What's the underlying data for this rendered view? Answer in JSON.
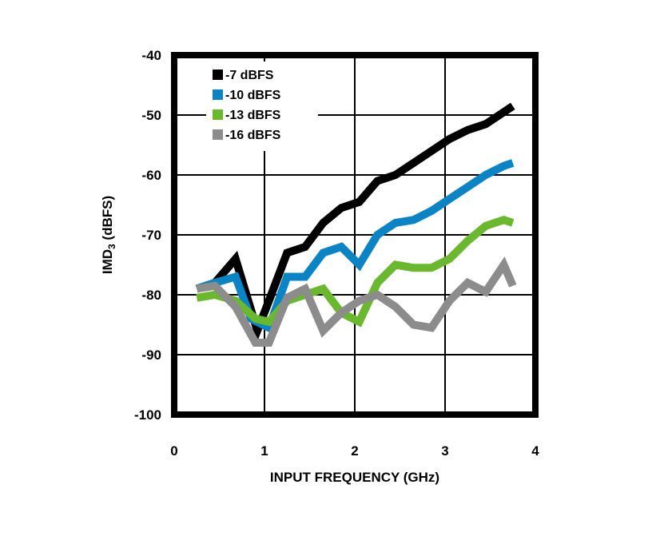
{
  "chart_data": {
    "type": "line",
    "title": "",
    "xlabel": "INPUT FREQUENCY (GHz)",
    "ylabel_main": "IMD",
    "ylabel_sub": "3",
    "ylabel_unit": " (dBFS)",
    "xlim": [
      0,
      4
    ],
    "ylim": [
      -100,
      -40
    ],
    "x_ticks": [
      "0",
      "1",
      "2",
      "3",
      "4"
    ],
    "y_ticks": [
      "-40",
      "-50",
      "-60",
      "-70",
      "-80",
      "-90",
      "-100"
    ],
    "grid": true,
    "legend_position": "top-left",
    "series": [
      {
        "name": "-7 dBFS",
        "color": "#000000",
        "x": [
          0.25,
          0.45,
          0.68,
          0.8,
          0.92,
          1.05,
          1.25,
          1.45,
          1.65,
          1.85,
          2.05,
          2.25,
          2.45,
          2.65,
          2.85,
          3.05,
          3.25,
          3.45,
          3.65,
          3.75
        ],
        "y": [
          -79,
          -78,
          -74,
          -80,
          -86,
          -81,
          -73,
          -72,
          -68,
          -65.5,
          -64.5,
          -61,
          -60,
          -58,
          -56,
          -54,
          -52.5,
          -51.5,
          -49.5,
          -48.5
        ]
      },
      {
        "name": "-10 dBFS",
        "color": "#0b84c6",
        "x": [
          0.25,
          0.45,
          0.68,
          0.85,
          1.05,
          1.25,
          1.45,
          1.65,
          1.85,
          2.05,
          2.25,
          2.45,
          2.65,
          2.85,
          3.05,
          3.25,
          3.45,
          3.65,
          3.75
        ],
        "y": [
          -79,
          -78,
          -77,
          -84,
          -85.5,
          -77,
          -77,
          -73,
          -72,
          -75,
          -70,
          -68,
          -67.5,
          -66,
          -64,
          -62,
          -60,
          -58.5,
          -58
        ]
      },
      {
        "name": "-13 dBFS",
        "color": "#6ab82e",
        "x": [
          0.25,
          0.45,
          0.68,
          0.9,
          1.05,
          1.25,
          1.45,
          1.65,
          1.85,
          2.05,
          2.25,
          2.45,
          2.65,
          2.85,
          3.05,
          3.25,
          3.45,
          3.65,
          3.75
        ],
        "y": [
          -80.5,
          -80,
          -81,
          -84,
          -84.5,
          -81,
          -80,
          -79,
          -83,
          -84.5,
          -78,
          -75,
          -75.5,
          -75.5,
          -74,
          -71,
          -68.5,
          -67.5,
          -68
        ]
      },
      {
        "name": "-16 dBFS",
        "color": "#8c8c8c",
        "x": [
          0.25,
          0.45,
          0.68,
          0.9,
          1.05,
          1.25,
          1.45,
          1.65,
          1.85,
          2.05,
          2.25,
          2.45,
          2.65,
          2.85,
          3.05,
          3.25,
          3.45,
          3.65,
          3.75
        ],
        "y": [
          -79,
          -78.5,
          -82,
          -88,
          -88,
          -80.5,
          -79,
          -86,
          -83,
          -81,
          -80,
          -82,
          -85,
          -85.5,
          -81,
          -78,
          -79.5,
          -75,
          -78.5
        ]
      }
    ]
  }
}
